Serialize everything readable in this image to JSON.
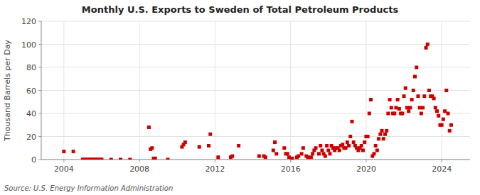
{
  "chart_data": {
    "type": "scatter",
    "title": "Monthly U.S. Exports to Sweden of Total Petroleum Products",
    "y_label": "Thousand Barrels per Day",
    "annotations": [
      "Source: U.S. Energy Information Administration"
    ],
    "color": "#cc0000",
    "marker": "square",
    "grid": true,
    "xlim": [
      2002.8,
      2025.5
    ],
    "xticks": [
      2004,
      2008,
      2012,
      2016,
      2020,
      2024
    ],
    "ylim": [
      0,
      120
    ],
    "yticks": [
      0,
      20,
      40,
      60,
      80,
      100,
      120
    ],
    "x": [
      2004.0,
      2004.5,
      2005.0,
      2005.083,
      2005.167,
      2005.25,
      2005.333,
      2005.417,
      2005.5,
      2005.583,
      2005.667,
      2005.75,
      2005.833,
      2005.917,
      2006.0,
      2006.5,
      2007.0,
      2007.5,
      2008.5,
      2008.583,
      2008.667,
      2008.75,
      2008.833,
      2009.5,
      2010.25,
      2010.333,
      2010.417,
      2011.167,
      2011.667,
      2011.75,
      2012.167,
      2012.833,
      2012.917,
      2013.25,
      2014.333,
      2014.583,
      2014.667,
      2015.083,
      2015.167,
      2015.25,
      2015.667,
      2015.75,
      2015.833,
      2015.917,
      2016.083,
      2016.333,
      2016.417,
      2016.583,
      2016.667,
      2016.833,
      2016.917,
      2017.083,
      2017.167,
      2017.25,
      2017.333,
      2017.5,
      2017.583,
      2017.667,
      2017.75,
      2017.833,
      2017.917,
      2018.0,
      2018.083,
      2018.167,
      2018.25,
      2018.333,
      2018.417,
      2018.5,
      2018.583,
      2018.667,
      2018.75,
      2018.833,
      2018.917,
      2019.0,
      2019.083,
      2019.167,
      2019.25,
      2019.333,
      2019.417,
      2019.5,
      2019.583,
      2019.667,
      2019.75,
      2019.833,
      2019.917,
      2020.0,
      2020.083,
      2020.167,
      2020.25,
      2020.333,
      2020.417,
      2020.5,
      2020.583,
      2020.667,
      2020.75,
      2020.833,
      2020.917,
      2021.0,
      2021.083,
      2021.167,
      2021.25,
      2021.333,
      2021.417,
      2021.5,
      2021.583,
      2021.667,
      2021.75,
      2021.833,
      2021.917,
      2022.0,
      2022.083,
      2022.167,
      2022.25,
      2022.333,
      2022.417,
      2022.5,
      2022.583,
      2022.667,
      2022.75,
      2022.833,
      2022.917,
      2023.0,
      2023.083,
      2023.167,
      2023.25,
      2023.333,
      2023.417,
      2023.5,
      2023.583,
      2023.667,
      2023.75,
      2023.833,
      2023.917,
      2024.0,
      2024.083,
      2024.167,
      2024.25,
      2024.333,
      2024.417,
      2024.5
    ],
    "values": [
      7,
      7,
      0,
      0,
      0,
      0,
      0,
      0,
      0,
      0,
      0,
      0,
      0,
      0,
      0,
      0,
      0,
      0,
      28,
      9,
      10,
      1,
      1,
      0,
      11,
      13,
      15,
      11,
      12,
      22,
      2,
      2,
      3,
      12,
      3,
      3,
      2,
      8,
      15,
      5,
      10,
      5,
      5,
      2,
      1,
      2,
      3,
      5,
      10,
      3,
      2,
      2,
      5,
      8,
      10,
      5,
      12,
      8,
      5,
      3,
      12,
      8,
      5,
      12,
      10,
      8,
      10,
      10,
      8,
      12,
      13,
      10,
      10,
      15,
      12,
      20,
      33,
      15,
      12,
      10,
      8,
      10,
      12,
      8,
      15,
      20,
      20,
      40,
      52,
      3,
      5,
      12,
      8,
      18,
      22,
      25,
      18,
      22,
      25,
      40,
      52,
      45,
      40,
      40,
      45,
      52,
      44,
      40,
      40,
      55,
      62,
      45,
      42,
      45,
      52,
      60,
      72,
      80,
      55,
      45,
      40,
      45,
      55,
      97,
      100,
      60,
      55,
      55,
      53,
      45,
      42,
      38,
      30,
      30,
      35,
      42,
      60,
      40,
      25,
      30
    ]
  }
}
